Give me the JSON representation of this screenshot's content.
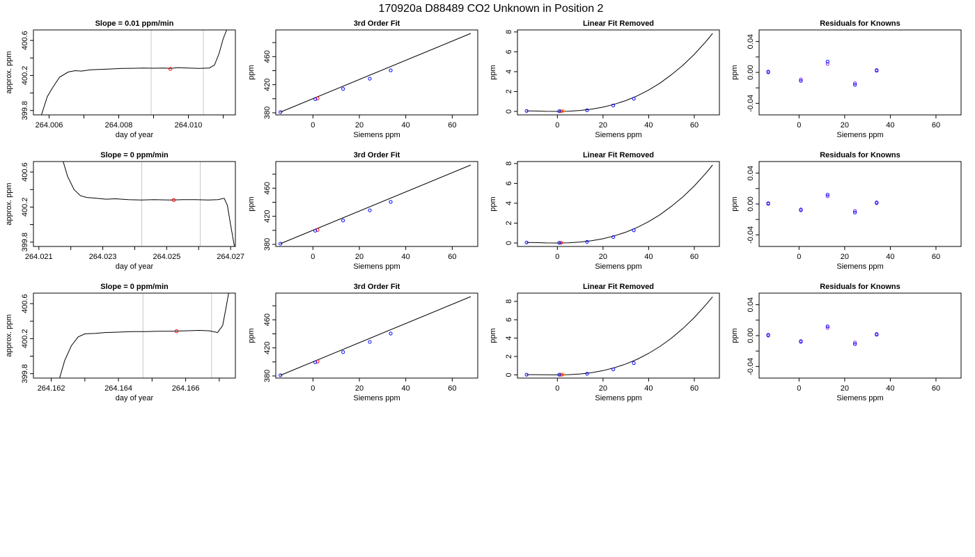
{
  "page_title": "170920a      D88489   CO2 Unknown in Position  2",
  "colors": {
    "line": "#000000",
    "known_point": "#0000ff",
    "unknown_point": "#ff0000",
    "sample_point": "#ff8c00",
    "residual_point": "#8a2be2",
    "window_line": "#c8c8c8"
  },
  "chart_data": [
    {
      "type": "line",
      "title": "Slope =  0.01  ppm/min",
      "xlabel": "day of year",
      "ylabel": "approx. ppm",
      "xlim": [
        264.00555,
        264.01135
      ],
      "ylim": [
        399.75,
        400.72
      ],
      "xticks": [
        264.006,
        264.008,
        264.01
      ],
      "xtick_labels": [
        "264.006",
        "264.008",
        "264.010"
      ],
      "minor_xticks": [
        264.007,
        264.009,
        264.011
      ],
      "yticks": [
        399.8,
        400.0,
        400.2,
        400.4,
        400.6
      ],
      "ytick_labels": [
        "399.8",
        "400.2",
        "400.6"
      ],
      "window": [
        264.00893,
        264.01043
      ],
      "curve": {
        "x": [
          264.00578,
          264.00595,
          264.0061,
          264.0063,
          264.00655,
          264.00675,
          264.00693,
          264.0072,
          264.0075,
          264.0078,
          264.0081,
          264.0084,
          264.0087,
          264.009,
          264.0093,
          264.00948,
          264.0097,
          264.01,
          264.0103,
          264.0106,
          264.01075,
          264.01088,
          264.011,
          264.0111
        ],
        "y": [
          399.75,
          399.96,
          400.06,
          400.18,
          400.24,
          400.255,
          400.25,
          400.265,
          400.27,
          400.275,
          400.28,
          400.282,
          400.285,
          400.283,
          400.285,
          400.28,
          400.29,
          400.285,
          400.28,
          400.285,
          400.32,
          400.45,
          400.62,
          400.72
        ]
      },
      "marker": {
        "x": 264.00948,
        "y": 400.275
      }
    },
    {
      "type": "scatter",
      "title": "3rd Order Fit",
      "xlabel": "Siemens ppm",
      "ylabel": "ppm",
      "xlim": [
        -16,
        71
      ],
      "ylim": [
        377,
        498
      ],
      "xticks": [
        0,
        20,
        40,
        60
      ],
      "xtick_labels": [
        "0",
        "20",
        "40",
        "60"
      ],
      "yticks": [
        380,
        400,
        420,
        440,
        460,
        480
      ],
      "ytick_labels": [
        "380",
        "420",
        "460"
      ],
      "fit_line": {
        "x": [
          -14,
          68
        ],
        "y": [
          381,
          493
        ]
      },
      "known": {
        "x": [
          -14,
          1,
          13,
          24.5,
          33.5
        ],
        "y": [
          381,
          399.5,
          414,
          428.5,
          440.5
        ]
      },
      "unknown": {
        "x": [
          2
        ],
        "y": [
          400.5
        ]
      },
      "sample": {
        "x": [],
        "y": []
      }
    },
    {
      "type": "scatter",
      "title": "Linear Fit Removed",
      "xlabel": "Siemens ppm",
      "ylabel": "ppm",
      "xlim": [
        -17.5,
        71
      ],
      "ylim": [
        -0.35,
        8.2
      ],
      "xticks": [
        0,
        20,
        40,
        60
      ],
      "xtick_labels": [
        "0",
        "20",
        "40",
        "60"
      ],
      "yticks": [
        0,
        2,
        4,
        6,
        8
      ],
      "ytick_labels": [
        "0",
        "2",
        "4",
        "6",
        "8"
      ],
      "fit_curve": {
        "x": [
          -13.5,
          -10,
          -5,
          0,
          5,
          10,
          15,
          20,
          25,
          30,
          35,
          40,
          45,
          50,
          55,
          60,
          65,
          68
        ],
        "y": [
          0.05,
          0.04,
          0.01,
          0,
          0.02,
          0.1,
          0.23,
          0.43,
          0.72,
          1.09,
          1.56,
          2.15,
          2.85,
          3.7,
          4.65,
          5.75,
          7.0,
          7.85
        ]
      },
      "known": {
        "x": [
          -13.5,
          0.8,
          13,
          24.5,
          33.5
        ],
        "y": [
          0.05,
          0.02,
          0.12,
          0.6,
          1.28
        ]
      },
      "unknown": {
        "x": [
          1.6
        ],
        "y": [
          0.02
        ]
      },
      "sample": {
        "x": [
          2.4
        ],
        "y": [
          0.03
        ]
      }
    },
    {
      "type": "scatter",
      "title": "Residuals for Knowns",
      "xlabel": "Siemens ppm",
      "ylabel": "ppm",
      "xlim": [
        -17.5,
        71
      ],
      "ylim": [
        -0.055,
        0.055
      ],
      "xticks": [
        0,
        20,
        40,
        60
      ],
      "xtick_labels": [
        "0",
        "20",
        "40",
        "60"
      ],
      "yticks": [
        -0.04,
        -0.02,
        0,
        0.02,
        0.04
      ],
      "ytick_labels": [
        "-0.04",
        "0.00",
        "0.04"
      ],
      "points_a": {
        "x": [
          -13.5,
          0.8,
          12.5,
          24.5,
          34
        ],
        "y": [
          0.0,
          -0.009,
          0.011,
          -0.014,
          0.002
        ]
      },
      "points_b": {
        "x": [
          -13.5,
          0.8,
          12.5,
          24.5,
          34
        ],
        "y": [
          0.001,
          -0.011,
          0.014,
          -0.016,
          0.003
        ]
      }
    },
    {
      "type": "line",
      "title": "Slope =  0  ppm/min",
      "xlabel": "day of year",
      "ylabel": "approx. ppm",
      "xlim": [
        264.02083,
        264.02715
      ],
      "ylim": [
        399.75,
        400.72
      ],
      "xticks": [
        264.021,
        264.023,
        264.025,
        264.027
      ],
      "xtick_labels": [
        "264.021",
        "264.023",
        "264.025",
        "264.027"
      ],
      "minor_xticks": [
        264.022,
        264.024,
        264.026
      ],
      "yticks": [
        399.8,
        400.0,
        400.2,
        400.4,
        400.6
      ],
      "ytick_labels": [
        "399.8",
        "400.2",
        "400.6"
      ],
      "window": [
        264.02422,
        264.02605
      ],
      "curve": {
        "x": [
          264.02176,
          264.0219,
          264.0221,
          264.0223,
          264.0225,
          264.0228,
          264.0231,
          264.0234,
          264.0238,
          264.0242,
          264.0246,
          264.0251,
          264.0255,
          264.0259,
          264.0263,
          264.0266,
          264.0268,
          264.0269,
          264.027,
          264.02712
        ],
        "y": [
          400.72,
          400.55,
          400.4,
          400.33,
          400.31,
          400.3,
          400.29,
          400.295,
          400.285,
          400.28,
          400.285,
          400.28,
          400.285,
          400.285,
          400.28,
          400.285,
          400.3,
          400.22,
          400.0,
          399.75
        ]
      },
      "marker": {
        "x": 264.02522,
        "y": 400.28
      }
    },
    {
      "type": "scatter",
      "title": "3rd Order Fit",
      "xlabel": "Siemens ppm",
      "ylabel": "ppm",
      "xlim": [
        -16,
        71
      ],
      "ylim": [
        377,
        498
      ],
      "xticks": [
        0,
        20,
        40,
        60
      ],
      "xtick_labels": [
        "0",
        "20",
        "40",
        "60"
      ],
      "yticks": [
        380,
        400,
        420,
        440,
        460,
        480
      ],
      "ytick_labels": [
        "380",
        "420",
        "460"
      ],
      "fit_line": {
        "x": [
          -14,
          68
        ],
        "y": [
          381,
          493
        ]
      },
      "known": {
        "x": [
          -14,
          1,
          13,
          24.5,
          33.5
        ],
        "y": [
          381,
          399.5,
          414,
          428.5,
          440.5
        ]
      },
      "unknown": {
        "x": [
          2
        ],
        "y": [
          400.5
        ]
      },
      "sample": {
        "x": [],
        "y": []
      }
    },
    {
      "type": "scatter",
      "title": "Linear Fit Removed",
      "xlabel": "Siemens ppm",
      "ylabel": "ppm",
      "xlim": [
        -17.5,
        71
      ],
      "ylim": [
        -0.35,
        8.2
      ],
      "xticks": [
        0,
        20,
        40,
        60
      ],
      "xtick_labels": [
        "0",
        "20",
        "40",
        "60"
      ],
      "yticks": [
        0,
        2,
        4,
        6,
        8
      ],
      "ytick_labels": [
        "0",
        "2",
        "4",
        "6",
        "8"
      ],
      "fit_curve": {
        "x": [
          -13.5,
          -10,
          -5,
          0,
          5,
          10,
          15,
          20,
          25,
          30,
          35,
          40,
          45,
          50,
          55,
          60,
          65,
          68
        ],
        "y": [
          0.05,
          0.04,
          0.01,
          0,
          0.02,
          0.1,
          0.23,
          0.43,
          0.72,
          1.09,
          1.56,
          2.15,
          2.85,
          3.7,
          4.65,
          5.75,
          7.0,
          7.85
        ]
      },
      "known": {
        "x": [
          -13.5,
          0.8,
          13,
          24.5,
          33.5
        ],
        "y": [
          0.05,
          0.02,
          0.12,
          0.6,
          1.28
        ]
      },
      "unknown": {
        "x": [
          1.6
        ],
        "y": [
          0.02
        ]
      },
      "sample": {
        "x": [],
        "y": []
      }
    },
    {
      "type": "scatter",
      "title": "Residuals for Knowns",
      "xlabel": "Siemens ppm",
      "ylabel": "ppm",
      "xlim": [
        -17.5,
        71
      ],
      "ylim": [
        -0.055,
        0.055
      ],
      "xticks": [
        0,
        20,
        40,
        60
      ],
      "xtick_labels": [
        "0",
        "20",
        "40",
        "60"
      ],
      "yticks": [
        -0.04,
        -0.02,
        0,
        0.02,
        0.04
      ],
      "ytick_labels": [
        "-0.04",
        "0.00",
        "0.04"
      ],
      "points_a": {
        "x": [
          -13.5,
          0.8,
          12.5,
          24.5,
          34
        ],
        "y": [
          0.0,
          -0.007,
          0.01,
          -0.009,
          0.001
        ]
      },
      "points_b": {
        "x": [
          -13.5,
          0.8,
          12.5,
          24.5,
          34
        ],
        "y": [
          0.001,
          -0.008,
          0.012,
          -0.011,
          0.002
        ]
      }
    },
    {
      "type": "line",
      "title": "Slope =  0  ppm/min",
      "xlabel": "day of year",
      "ylabel": "approx. ppm",
      "xlim": [
        264.16147,
        264.16748
      ],
      "ylim": [
        399.75,
        400.72
      ],
      "xticks": [
        264.162,
        264.164,
        264.166
      ],
      "xtick_labels": [
        "264.162",
        "264.164",
        "264.166"
      ],
      "minor_xticks": [
        264.163,
        264.165,
        264.167
      ],
      "yticks": [
        399.8,
        400.0,
        400.2,
        400.4,
        400.6
      ],
      "ytick_labels": [
        "399.8",
        "400.2",
        "400.6"
      ],
      "window": [
        264.16473,
        264.16677
      ],
      "curve": {
        "x": [
          264.16225,
          264.1624,
          264.1626,
          264.1628,
          264.163,
          264.1633,
          264.1636,
          264.164,
          264.1644,
          264.1648,
          264.1652,
          264.1656,
          264.166,
          264.1664,
          264.1667,
          264.16695,
          264.1671,
          264.1672,
          264.16728
        ],
        "y": [
          399.75,
          399.95,
          400.12,
          400.22,
          400.255,
          400.26,
          400.27,
          400.275,
          400.28,
          400.28,
          400.285,
          400.285,
          400.29,
          400.295,
          400.29,
          400.27,
          400.35,
          400.55,
          400.72
        ]
      },
      "marker": {
        "x": 264.16573,
        "y": 400.285
      }
    },
    {
      "type": "scatter",
      "title": "3rd Order Fit",
      "xlabel": "Siemens ppm",
      "ylabel": "ppm",
      "xlim": [
        -16,
        71
      ],
      "ylim": [
        377,
        498
      ],
      "xticks": [
        0,
        20,
        40,
        60
      ],
      "xtick_labels": [
        "0",
        "20",
        "40",
        "60"
      ],
      "yticks": [
        380,
        400,
        420,
        440,
        460,
        480
      ],
      "ytick_labels": [
        "380",
        "420",
        "460"
      ],
      "fit_line": {
        "x": [
          -14,
          68
        ],
        "y": [
          381,
          493
        ]
      },
      "known": {
        "x": [
          -14,
          1,
          13,
          24.5,
          33.5
        ],
        "y": [
          381,
          399.5,
          414,
          428.5,
          440.5
        ]
      },
      "unknown": {
        "x": [
          2
        ],
        "y": [
          400.5
        ]
      },
      "sample": {
        "x": [],
        "y": []
      }
    },
    {
      "type": "scatter",
      "title": "Linear Fit Removed",
      "xlabel": "Siemens ppm",
      "ylabel": "ppm",
      "xlim": [
        -17.5,
        71
      ],
      "ylim": [
        -0.35,
        8.9
      ],
      "xticks": [
        0,
        20,
        40,
        60
      ],
      "xtick_labels": [
        "0",
        "20",
        "40",
        "60"
      ],
      "yticks": [
        0,
        2,
        4,
        6,
        8
      ],
      "ytick_labels": [
        "0",
        "2",
        "4",
        "6",
        "8"
      ],
      "fit_curve": {
        "x": [
          -13.5,
          -10,
          -5,
          0,
          5,
          10,
          15,
          20,
          25,
          30,
          35,
          40,
          45,
          50,
          55,
          60,
          65,
          68
        ],
        "y": [
          0.02,
          0.02,
          0.01,
          0,
          0.02,
          0.1,
          0.24,
          0.46,
          0.78,
          1.18,
          1.7,
          2.34,
          3.1,
          4.0,
          5.05,
          6.25,
          7.6,
          8.5
        ]
      },
      "known": {
        "x": [
          -13.5,
          0.8,
          13,
          24.5,
          33.5
        ],
        "y": [
          0.02,
          0.02,
          0.12,
          0.6,
          1.28
        ]
      },
      "unknown": {
        "x": [
          1.6
        ],
        "y": [
          0.02
        ]
      },
      "sample": {
        "x": [
          2.4
        ],
        "y": [
          0.03
        ]
      }
    },
    {
      "type": "scatter",
      "title": "Residuals for Knowns",
      "xlabel": "Siemens ppm",
      "ylabel": "ppm",
      "xlim": [
        -17.5,
        71
      ],
      "ylim": [
        -0.055,
        0.055
      ],
      "xticks": [
        0,
        20,
        40,
        60
      ],
      "xtick_labels": [
        "0",
        "20",
        "40",
        "60"
      ],
      "yticks": [
        -0.04,
        -0.02,
        0,
        0.02,
        0.04
      ],
      "ytick_labels": [
        "-0.04",
        "0.00",
        "0.04"
      ],
      "points_a": {
        "x": [
          -13.5,
          0.8,
          12.5,
          24.5,
          34
        ],
        "y": [
          0.0,
          -0.007,
          0.01,
          -0.009,
          0.001
        ]
      },
      "points_b": {
        "x": [
          -13.5,
          0.8,
          12.5,
          24.5,
          34
        ],
        "y": [
          0.001,
          -0.008,
          0.012,
          -0.011,
          0.002
        ]
      }
    }
  ]
}
